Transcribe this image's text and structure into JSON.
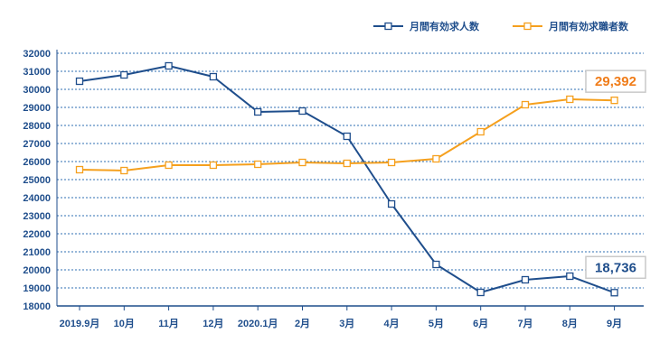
{
  "chart_data": {
    "type": "line",
    "categories": [
      "2019.9月",
      "10月",
      "11月",
      "12月",
      "2020.1月",
      "2月",
      "3月",
      "4月",
      "5月",
      "6月",
      "7月",
      "8月",
      "9月"
    ],
    "series": [
      {
        "name": "月間有効求人数",
        "color": "#1f4e8c",
        "values": [
          30450,
          30800,
          31300,
          30700,
          28750,
          28800,
          27400,
          23650,
          20300,
          18750,
          19450,
          19650,
          18736
        ]
      },
      {
        "name": "月間有効求職者数",
        "color": "#f5a01e",
        "values": [
          25550,
          25500,
          25800,
          25800,
          25850,
          25950,
          25900,
          25950,
          26150,
          27650,
          29150,
          29450,
          29392
        ]
      }
    ],
    "ylim": [
      18000,
      32000
    ],
    "yticks": [
      18000,
      19000,
      20000,
      21000,
      22000,
      23000,
      24000,
      25000,
      26000,
      27000,
      28000,
      29000,
      30000,
      31000,
      32000
    ],
    "grid": true,
    "legend_position": "top-right",
    "annotations": [
      {
        "series": 1,
        "text": "29,392",
        "color": "#f07d1a"
      },
      {
        "series": 0,
        "text": "18,736",
        "color": "#1f4e8c"
      }
    ]
  }
}
